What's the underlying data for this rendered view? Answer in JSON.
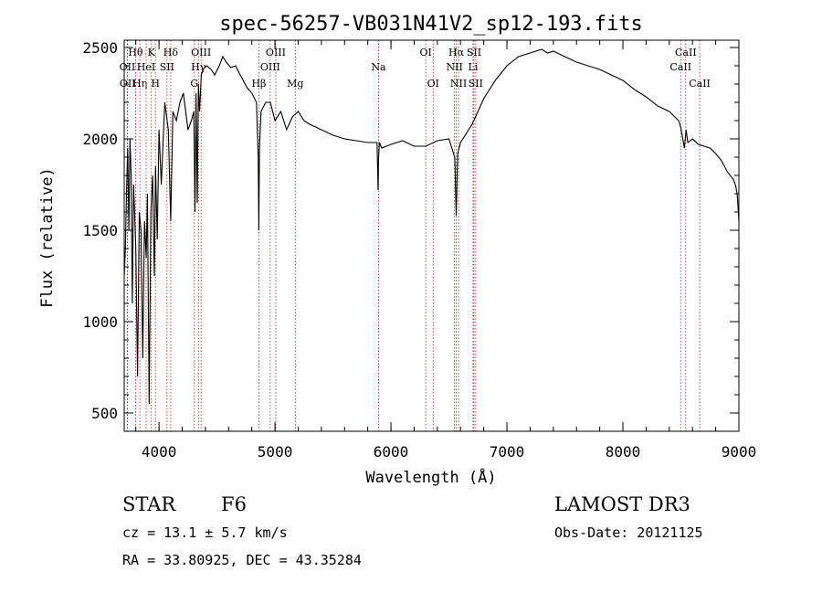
{
  "chart_data": {
    "type": "line",
    "title": "spec-56257-VB031N41V2_sp12-193.fits",
    "xlabel": "Wavelength (Å)",
    "ylabel": "Flux (relative)",
    "xlim": [
      3700,
      9000
    ],
    "ylim": [
      400,
      2540
    ],
    "xticks": [
      4000,
      5000,
      6000,
      7000,
      8000,
      9000
    ],
    "yticks": [
      500,
      1000,
      1500,
      2000,
      2500
    ],
    "series": [
      {
        "name": "flux",
        "x": [
          3700,
          3710,
          3720,
          3730,
          3740,
          3750,
          3760,
          3770,
          3780,
          3790,
          3800,
          3815,
          3830,
          3845,
          3860,
          3875,
          3890,
          3900,
          3915,
          3930,
          3945,
          3960,
          3970,
          3985,
          4000,
          4020,
          4050,
          4080,
          4101,
          4120,
          4150,
          4180,
          4210,
          4250,
          4280,
          4300,
          4310,
          4320,
          4330,
          4340,
          4350,
          4365,
          4380,
          4410,
          4450,
          4480,
          4520,
          4550,
          4580,
          4620,
          4660,
          4700,
          4760,
          4800,
          4840,
          4855,
          4861,
          4866,
          4880,
          4920,
          4960,
          5000,
          5050,
          5100,
          5150,
          5200,
          5250,
          5300,
          5400,
          5500,
          5600,
          5700,
          5800,
          5880,
          5889,
          5893,
          5900,
          5920,
          6000,
          6100,
          6200,
          6300,
          6400,
          6500,
          6520,
          6550,
          6563,
          6575,
          6600,
          6650,
          6700,
          6750,
          6800,
          6900,
          7000,
          7100,
          7200,
          7300,
          7350,
          7400,
          7500,
          7600,
          7700,
          7800,
          7900,
          8000,
          8100,
          8200,
          8300,
          8400,
          8480,
          8500,
          8530,
          8545,
          8560,
          8600,
          8650,
          8700,
          8750,
          8800,
          8850,
          8900,
          8950,
          8970,
          8985,
          9000
        ],
        "y": [
          1250,
          1400,
          1700,
          1950,
          1500,
          2000,
          1800,
          1100,
          1750,
          1600,
          1400,
          700,
          1600,
          1500,
          800,
          1550,
          1350,
          1700,
          550,
          1600,
          1800,
          1250,
          1850,
          1450,
          2050,
          1750,
          2200,
          2050,
          1550,
          2150,
          2100,
          2200,
          2250,
          2050,
          2100,
          2150,
          1600,
          2250,
          1650,
          2300,
          2150,
          2350,
          2380,
          2400,
          2380,
          2350,
          2400,
          2450,
          2420,
          2390,
          2400,
          2350,
          2280,
          2250,
          2200,
          1900,
          1500,
          1950,
          2150,
          2200,
          2200,
          2100,
          2150,
          2050,
          2120,
          2150,
          2100,
          2080,
          2050,
          2020,
          2000,
          1990,
          1980,
          1980,
          1720,
          1900,
          1980,
          1950,
          1970,
          1990,
          1960,
          1960,
          1990,
          2000,
          1960,
          1900,
          1580,
          1920,
          1980,
          2030,
          2080,
          2150,
          2220,
          2320,
          2400,
          2450,
          2470,
          2490,
          2470,
          2480,
          2450,
          2420,
          2400,
          2380,
          2350,
          2320,
          2270,
          2230,
          2180,
          2150,
          2100,
          2060,
          1950,
          2050,
          1980,
          2000,
          1970,
          1960,
          1950,
          1920,
          1880,
          1820,
          1780,
          1750,
          1700,
          1550
        ]
      }
    ],
    "lines": [
      {
        "name": "Hθ",
        "wl": 3798,
        "row": 1
      },
      {
        "name": "OII",
        "wl": 3727,
        "row": 2
      },
      {
        "name": "OII",
        "wl": 3729,
        "row": 3
      },
      {
        "name": "Hη",
        "wl": 3835,
        "row": 3
      },
      {
        "name": "HeI",
        "wl": 3889,
        "row": 2
      },
      {
        "name": "K",
        "wl": 3934,
        "row": 1
      },
      {
        "name": "SII",
        "wl": 4069,
        "row": 2
      },
      {
        "name": "H",
        "wl": 3969,
        "row": 3
      },
      {
        "name": "Hδ",
        "wl": 4101,
        "row": 1
      },
      {
        "name": "OIII",
        "wl": 4363,
        "row": 1
      },
      {
        "name": "Hγ",
        "wl": 4340,
        "row": 2
      },
      {
        "name": "G",
        "wl": 4305,
        "row": 3
      },
      {
        "name": "OIII",
        "wl": 5007,
        "row": 1
      },
      {
        "name": "OIII",
        "wl": 4959,
        "row": 2
      },
      {
        "name": "Hβ",
        "wl": 4861,
        "row": 3
      },
      {
        "name": "Mg",
        "wl": 5175,
        "row": 3
      },
      {
        "name": "Na",
        "wl": 5893,
        "row": 2
      },
      {
        "name": "OI",
        "wl": 6300,
        "row": 1
      },
      {
        "name": "OI",
        "wl": 6364,
        "row": 3
      },
      {
        "name": "Hα",
        "wl": 6563,
        "row": 1
      },
      {
        "name": "SII",
        "wl": 6716,
        "row": 1
      },
      {
        "name": "NII",
        "wl": 6548,
        "row": 2
      },
      {
        "name": "Li",
        "wl": 6708,
        "row": 2
      },
      {
        "name": "NII",
        "wl": 6583,
        "row": 3
      },
      {
        "name": "SII",
        "wl": 6731,
        "row": 3
      },
      {
        "name": "CaII",
        "wl": 8542,
        "row": 1
      },
      {
        "name": "CaII",
        "wl": 8498,
        "row": 2
      },
      {
        "name": "CaII",
        "wl": 8662,
        "row": 3
      }
    ]
  },
  "footer": {
    "class": "STAR",
    "subclass": "F6",
    "survey": "LAMOST DR3",
    "cz": "cz = 13.1 ± 5.7 km/s",
    "obsdate": "Obs-Date: 20121125",
    "coords": "RA =  33.80925, DEC =  43.35284"
  }
}
